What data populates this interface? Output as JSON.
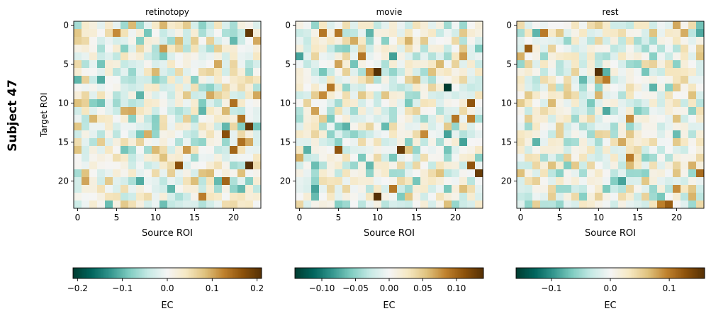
{
  "figure": {
    "row_label": "Subject 47"
  },
  "colormap": {
    "name": "BrBG_r",
    "stops": [
      "#003c30",
      "#01665e",
      "#35978f",
      "#80cdc1",
      "#c7eae5",
      "#f5f5f5",
      "#f6e8c3",
      "#dfc27d",
      "#bf812d",
      "#8c510a",
      "#543005"
    ]
  },
  "chart_data": [
    {
      "type": "heatmap",
      "title": "retinotopy",
      "xlabel": "Source ROI",
      "ylabel": "Target ROI",
      "size": 24,
      "xticks": [
        0,
        5,
        10,
        15,
        20
      ],
      "yticks": [
        0,
        5,
        10,
        15,
        20
      ],
      "vmin": -0.21,
      "vmax": 0.21,
      "seed": 47,
      "highlights": [
        [
          5,
          1,
          0.12
        ],
        [
          6,
          3,
          -0.08
        ],
        [
          3,
          5,
          -0.09
        ],
        [
          3,
          7,
          -0.11
        ],
        [
          2,
          10,
          -0.08
        ],
        [
          22,
          1,
          0.2
        ],
        [
          20,
          2,
          -0.1
        ],
        [
          23,
          2,
          0.1
        ],
        [
          18,
          3,
          0.07
        ],
        [
          18,
          5,
          0.1
        ],
        [
          10,
          6,
          0.09
        ],
        [
          7,
          11,
          0.1
        ],
        [
          6,
          16,
          -0.09
        ],
        [
          20,
          10,
          0.14
        ],
        [
          19,
          11,
          0.09
        ],
        [
          21,
          12,
          0.14
        ],
        [
          22,
          13,
          0.2
        ],
        [
          23,
          13,
          -0.09
        ],
        [
          19,
          14,
          0.17
        ],
        [
          21,
          15,
          0.14
        ],
        [
          20,
          16,
          0.15
        ],
        [
          14,
          16,
          0.11
        ],
        [
          13,
          18,
          0.17
        ],
        [
          22,
          18,
          0.21
        ],
        [
          19,
          20,
          0.15
        ],
        [
          21,
          21,
          -0.1
        ],
        [
          8,
          2,
          -0.08
        ],
        [
          17,
          9,
          0.1
        ],
        [
          16,
          22,
          0.13
        ]
      ],
      "colorbar": {
        "label": "EC",
        "ticks": [
          -0.2,
          -0.1,
          0.0,
          0.1,
          0.2
        ],
        "tick_labels": [
          "−0.2",
          "−0.1",
          "0.0",
          "0.1",
          "0.2"
        ]
      }
    },
    {
      "type": "heatmap",
      "title": "movie",
      "xlabel": "Source ROI",
      "ylabel": "",
      "size": 24,
      "xticks": [
        0,
        5,
        10,
        15,
        20
      ],
      "yticks": [
        0,
        5,
        10,
        15,
        20
      ],
      "vmin": -0.14,
      "vmax": 0.14,
      "seed": 1234,
      "highlights": [
        [
          3,
          1,
          0.09
        ],
        [
          5,
          1,
          0.09
        ],
        [
          8,
          4,
          0.09
        ],
        [
          10,
          6,
          0.14
        ],
        [
          7,
          5,
          -0.06
        ],
        [
          19,
          8,
          -0.14
        ],
        [
          4,
          8,
          0.09
        ],
        [
          3,
          9,
          0.08
        ],
        [
          22,
          10,
          0.11
        ],
        [
          20,
          12,
          0.09
        ],
        [
          5,
          16,
          0.11
        ],
        [
          13,
          16,
          0.13
        ],
        [
          22,
          18,
          0.11
        ],
        [
          23,
          19,
          0.13
        ],
        [
          10,
          22,
          0.14
        ],
        [
          12,
          21,
          0.09
        ],
        [
          9,
          6,
          0.08
        ],
        [
          16,
          14,
          0.08
        ],
        [
          6,
          13,
          -0.07
        ],
        [
          2,
          11,
          0.07
        ]
      ],
      "colorbar": {
        "label": "EC",
        "ticks": [
          -0.1,
          -0.05,
          0.0,
          0.05,
          0.1
        ],
        "tick_labels": [
          "−0.10",
          "−0.05",
          "0.00",
          "0.05",
          "0.10"
        ]
      }
    },
    {
      "type": "heatmap",
      "title": "rest",
      "xlabel": "Source ROI",
      "ylabel": "",
      "size": 24,
      "xticks": [
        0,
        5,
        10,
        15,
        20
      ],
      "yticks": [
        0,
        5,
        10,
        15,
        20
      ],
      "vmin": -0.16,
      "vmax": 0.16,
      "seed": 777,
      "highlights": [
        [
          3,
          1,
          0.1
        ],
        [
          1,
          3,
          0.12
        ],
        [
          10,
          6,
          0.16
        ],
        [
          11,
          7,
          0.1
        ],
        [
          14,
          12,
          0.09
        ],
        [
          14,
          17,
          0.1
        ],
        [
          19,
          23,
          0.12
        ],
        [
          23,
          19,
          0.11
        ],
        [
          20,
          21,
          0.09
        ],
        [
          5,
          19,
          -0.06
        ]
      ],
      "colorbar": {
        "label": "EC",
        "ticks": [
          -0.1,
          0.0,
          0.1
        ],
        "tick_labels": [
          "−0.1",
          "0.0",
          "0.1"
        ]
      }
    }
  ]
}
